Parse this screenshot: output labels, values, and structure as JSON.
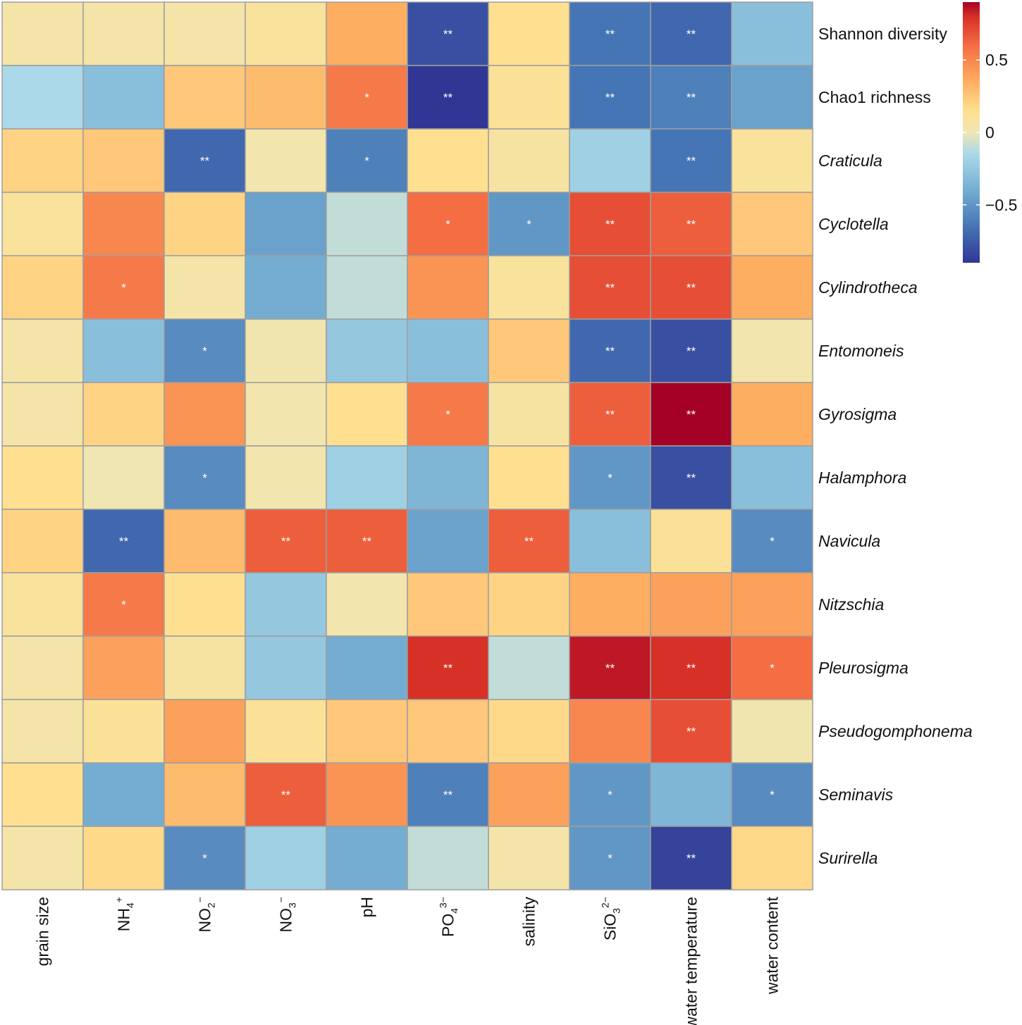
{
  "chart_data": {
    "type": "heatmap",
    "title": "",
    "rows": [
      {
        "label": "Shannon diversity",
        "italic": false
      },
      {
        "label": "Chao1 richness",
        "italic": false
      },
      {
        "label": "Craticula",
        "italic": true
      },
      {
        "label": "Cyclotella",
        "italic": true
      },
      {
        "label": "Cylindrotheca",
        "italic": true
      },
      {
        "label": "Entomoneis",
        "italic": true
      },
      {
        "label": "Gyrosigma",
        "italic": true
      },
      {
        "label": "Halamphora",
        "italic": true
      },
      {
        "label": "Navicula",
        "italic": true
      },
      {
        "label": "Nitzschia",
        "italic": true
      },
      {
        "label": "Pleurosigma",
        "italic": true
      },
      {
        "label": "Pseudogomphonema",
        "italic": true
      },
      {
        "label": "Seminavis",
        "italic": true
      },
      {
        "label": "Surirella",
        "italic": true
      }
    ],
    "columns": [
      {
        "base": "grain size",
        "sup": "",
        "sub": ""
      },
      {
        "base": "NH",
        "sup": "+",
        "sub": "4"
      },
      {
        "base": "NO",
        "sup": "−",
        "sub": "2"
      },
      {
        "base": "NO",
        "sup": "−",
        "sub": "3"
      },
      {
        "base": "pH",
        "sup": "",
        "sub": ""
      },
      {
        "base": "PO",
        "sup": "3−",
        "sub": "4"
      },
      {
        "base": "salinity",
        "sup": "",
        "sub": ""
      },
      {
        "base": "SiO",
        "sup": "2−",
        "sub": "3"
      },
      {
        "base": "water temperature",
        "sup": "",
        "sub": ""
      },
      {
        "base": "water content",
        "sup": "",
        "sub": ""
      }
    ],
    "values": [
      [
        0.05,
        0.05,
        0.05,
        0.1,
        0.35,
        -0.8,
        0.15,
        -0.65,
        -0.7,
        -0.3
      ],
      [
        -0.15,
        -0.3,
        0.25,
        0.3,
        0.55,
        -0.9,
        0.12,
        -0.65,
        -0.6,
        -0.45
      ],
      [
        0.2,
        0.25,
        -0.7,
        0.03,
        -0.6,
        0.15,
        0.08,
        -0.2,
        -0.65,
        0.1
      ],
      [
        0.1,
        0.5,
        0.2,
        -0.45,
        -0.1,
        0.6,
        -0.5,
        0.7,
        0.65,
        0.25
      ],
      [
        0.2,
        0.55,
        0.05,
        -0.4,
        -0.1,
        0.45,
        0.1,
        0.7,
        0.7,
        0.35
      ],
      [
        0.05,
        -0.3,
        -0.55,
        0.02,
        -0.25,
        -0.3,
        0.25,
        -0.7,
        -0.8,
        0.03
      ],
      [
        0.05,
        0.2,
        0.45,
        0.03,
        0.15,
        0.55,
        0.08,
        0.65,
        0.9,
        0.35
      ],
      [
        0.15,
        0.0,
        -0.55,
        0.03,
        -0.2,
        -0.35,
        0.15,
        -0.5,
        -0.8,
        -0.3
      ],
      [
        0.2,
        -0.7,
        0.3,
        0.65,
        0.65,
        -0.45,
        0.65,
        -0.3,
        0.12,
        -0.55
      ],
      [
        0.1,
        0.55,
        0.15,
        -0.25,
        0.03,
        0.25,
        0.2,
        0.35,
        0.4,
        0.4
      ],
      [
        0.05,
        0.4,
        0.08,
        -0.25,
        -0.4,
        0.8,
        -0.1,
        0.85,
        0.8,
        0.6
      ],
      [
        0.05,
        0.12,
        0.4,
        0.12,
        0.25,
        0.25,
        0.18,
        0.5,
        0.7,
        0.02
      ],
      [
        0.15,
        -0.4,
        0.3,
        0.65,
        0.45,
        -0.6,
        0.4,
        -0.5,
        -0.35,
        -0.55
      ],
      [
        0.05,
        0.18,
        -0.55,
        -0.2,
        -0.4,
        -0.1,
        0.05,
        -0.5,
        -0.85,
        0.18
      ]
    ],
    "significance": [
      [
        "",
        "",
        "",
        "",
        "",
        "**",
        "",
        "**",
        "**",
        ""
      ],
      [
        "",
        "",
        "",
        "",
        "*",
        "**",
        "",
        "**",
        "**",
        ""
      ],
      [
        "",
        "",
        "**",
        "",
        "*",
        "",
        "",
        "",
        "**",
        ""
      ],
      [
        "",
        "",
        "",
        "",
        "",
        "*",
        "*",
        "**",
        "**",
        ""
      ],
      [
        "",
        "*",
        "",
        "",
        "",
        "",
        "",
        "**",
        "**",
        ""
      ],
      [
        "",
        "",
        "*",
        "",
        "",
        "",
        "",
        "**",
        "**",
        ""
      ],
      [
        "",
        "",
        "",
        "",
        "",
        "*",
        "",
        "**",
        "**",
        ""
      ],
      [
        "",
        "",
        "*",
        "",
        "",
        "",
        "",
        "*",
        "**",
        ""
      ],
      [
        "",
        "**",
        "",
        "**",
        "**",
        "",
        "**",
        "",
        "",
        "*"
      ],
      [
        "",
        "*",
        "",
        "",
        "",
        "",
        "",
        "",
        "",
        ""
      ],
      [
        "",
        "",
        "",
        "",
        "",
        "**",
        "",
        "**",
        "**",
        "*"
      ],
      [
        "",
        "",
        "",
        "",
        "",
        "",
        "",
        "",
        "**",
        ""
      ],
      [
        "",
        "",
        "",
        "**",
        "",
        "**",
        "",
        "*",
        "",
        "*"
      ],
      [
        "",
        "",
        "*",
        "",
        "",
        "",
        "",
        "*",
        "**",
        ""
      ]
    ],
    "colorscale": {
      "range": [
        -0.9,
        0.9
      ],
      "stops": [
        {
          "value": -0.9,
          "color": "#313695"
        },
        {
          "value": -0.65,
          "color": "#4575b4"
        },
        {
          "value": -0.4,
          "color": "#74add1"
        },
        {
          "value": -0.15,
          "color": "#abd9e9"
        },
        {
          "value": 0.0,
          "color": "#efe6b4"
        },
        {
          "value": 0.15,
          "color": "#fee090"
        },
        {
          "value": 0.35,
          "color": "#fdae61"
        },
        {
          "value": 0.6,
          "color": "#f46d43"
        },
        {
          "value": 0.8,
          "color": "#d73027"
        },
        {
          "value": 0.9,
          "color": "#a50026"
        }
      ],
      "ticks": [
        {
          "value": 0.5,
          "label": "0.5"
        },
        {
          "value": 0,
          "label": "0"
        },
        {
          "value": -0.5,
          "label": "−0.5"
        }
      ]
    }
  }
}
